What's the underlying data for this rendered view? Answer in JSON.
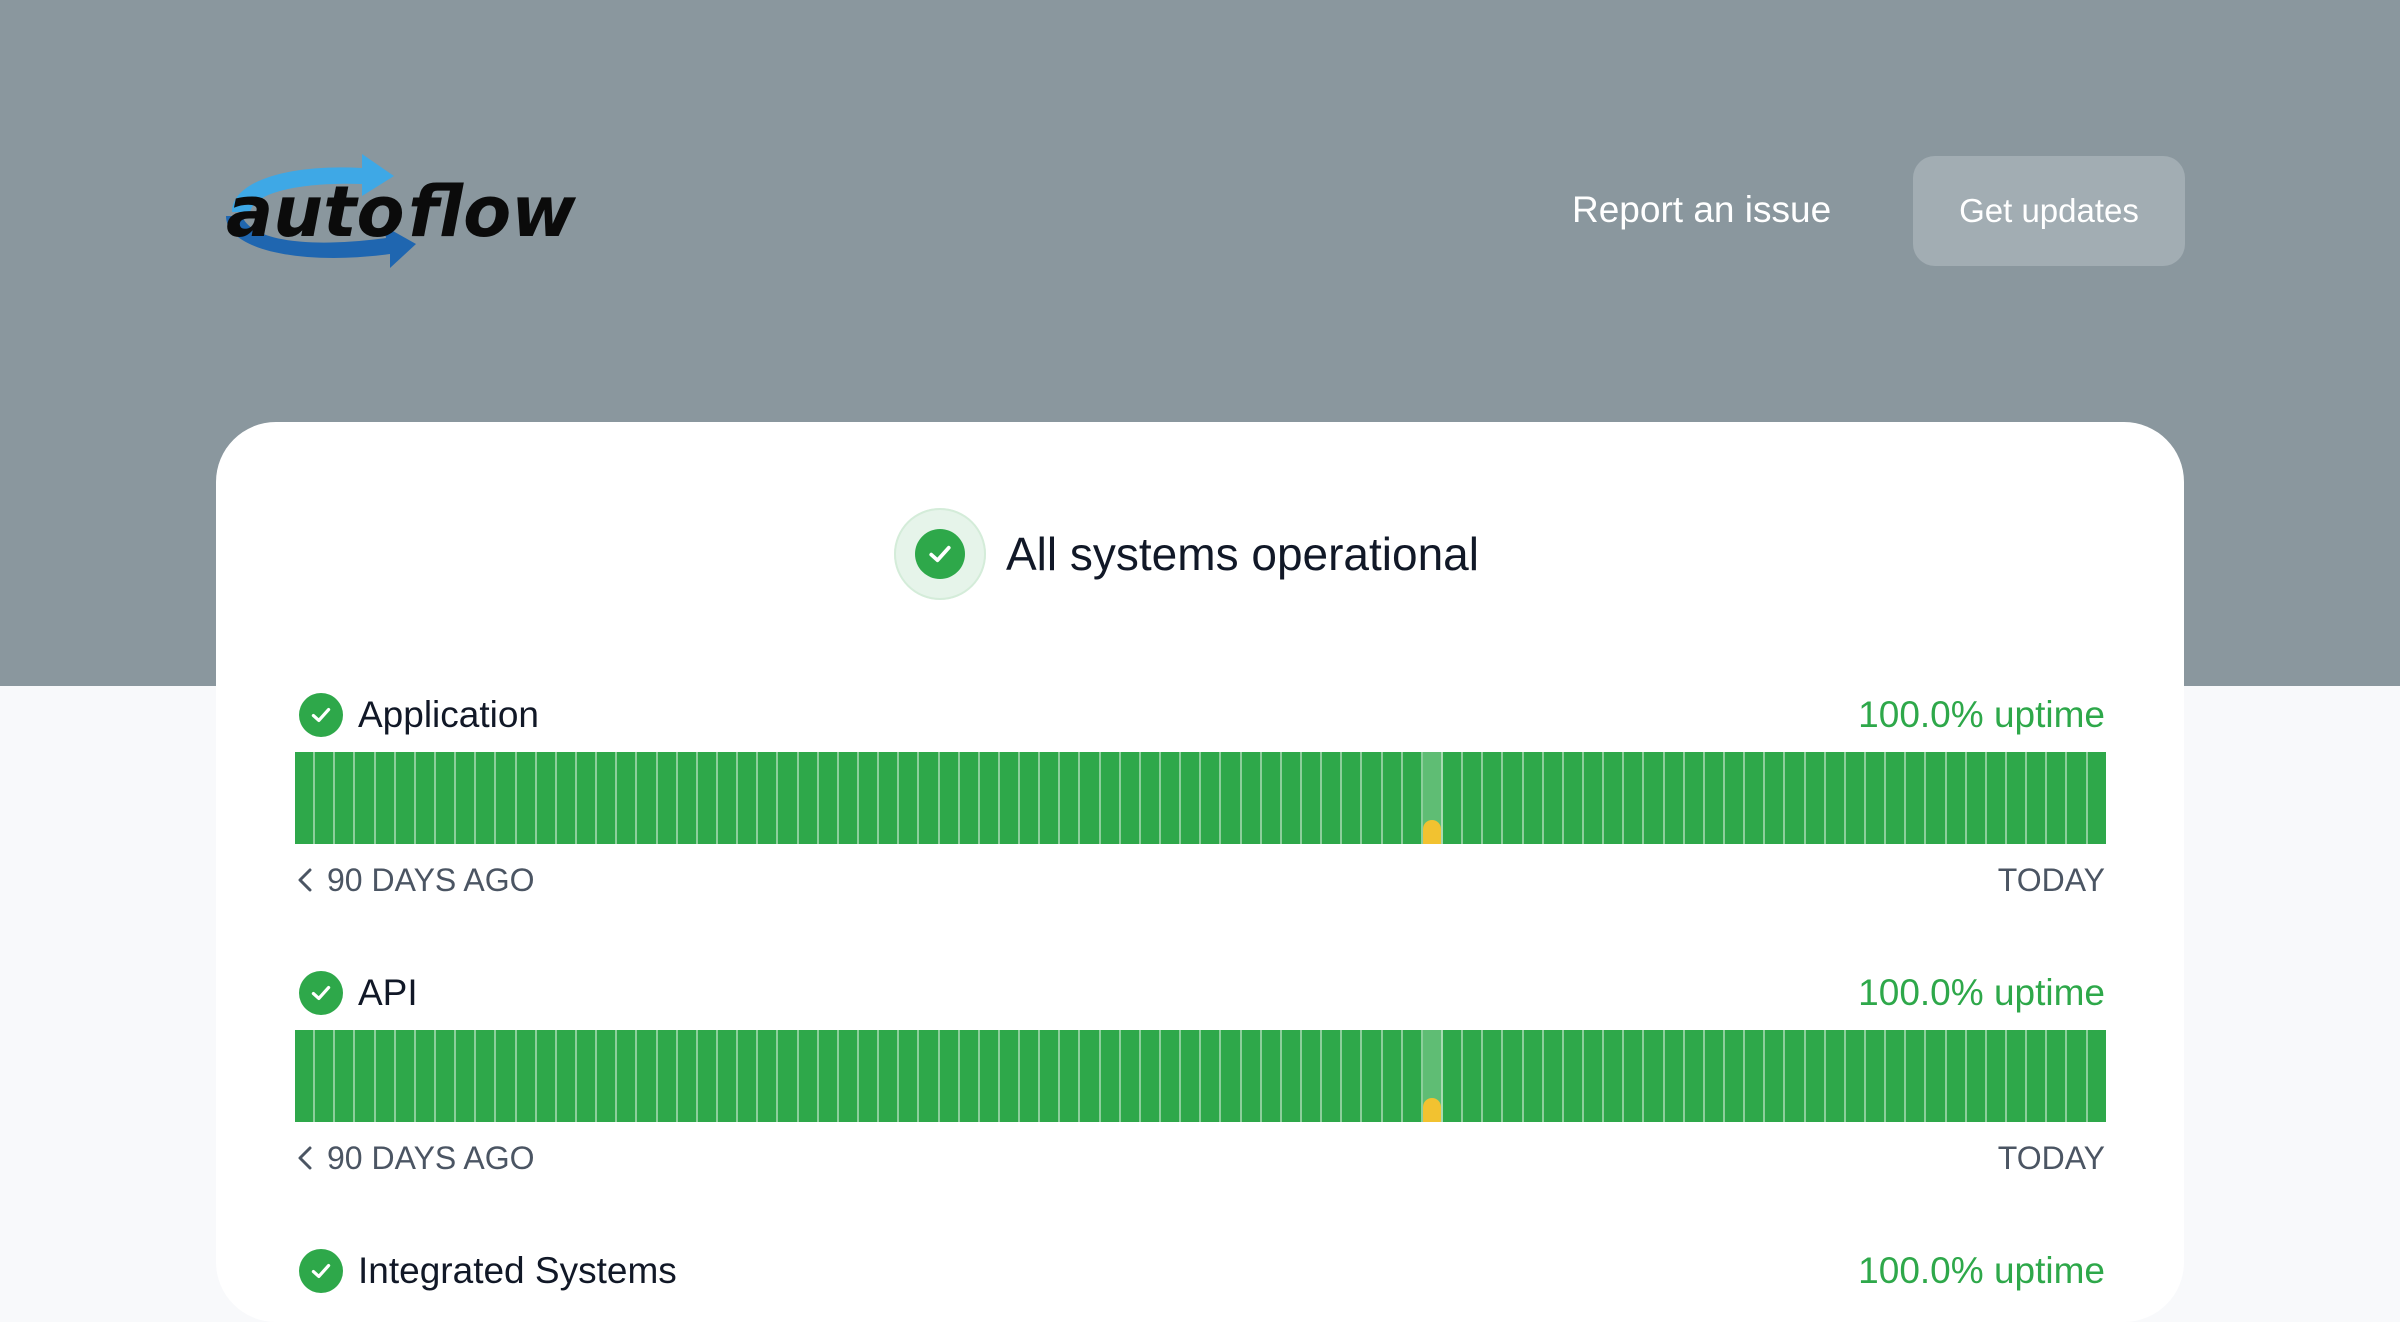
{
  "brand": {
    "name": "autoflow",
    "text_part1": "auto",
    "text_part2": "flow",
    "accent": "#3b82c4"
  },
  "header": {
    "report_link": "Report an issue",
    "updates_button": "Get updates"
  },
  "status": {
    "text": "All systems operational",
    "color": "#2ea84a"
  },
  "services": [
    {
      "name": "Application",
      "uptime": "100.0% uptime",
      "range_start": "90 DAYS AGO",
      "range_end": "TODAY",
      "days": 90,
      "incident_day_index": 56
    },
    {
      "name": "API",
      "uptime": "100.0% uptime",
      "range_start": "90 DAYS AGO",
      "range_end": "TODAY",
      "days": 90,
      "incident_day_index": 56
    },
    {
      "name": "Integrated Systems",
      "uptime": "100.0% uptime"
    }
  ],
  "colors": {
    "hero_bg": "#8a979e",
    "operational": "#2ea84a",
    "degraded": "#f2c230"
  }
}
